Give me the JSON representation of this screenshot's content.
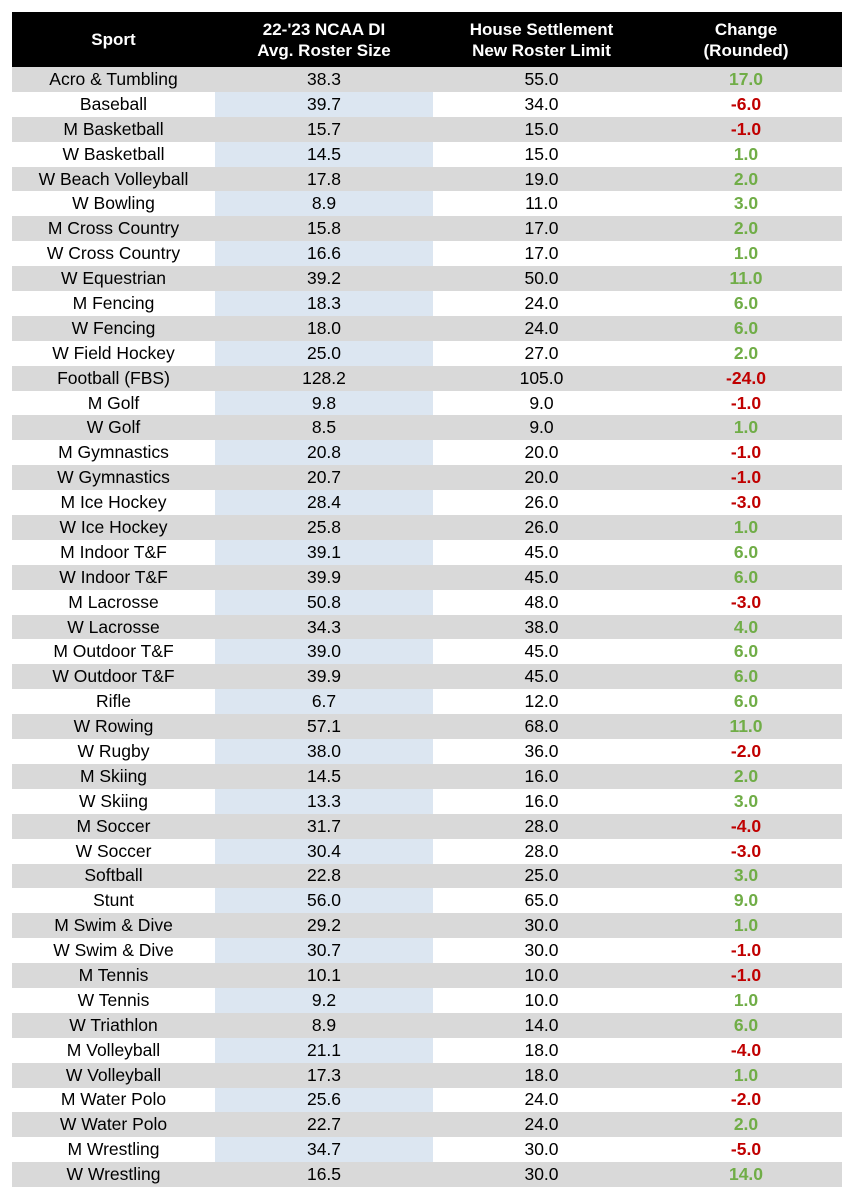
{
  "table": {
    "header": [
      [
        "Sport"
      ],
      [
        "22-'23 NCAA DI",
        "Avg. Roster Size"
      ],
      [
        "House Settlement",
        "New Roster Limit"
      ],
      [
        "Change",
        "(Rounded)"
      ]
    ],
    "rows": [
      [
        "Acro & Tumbling",
        "38.3",
        "55.0",
        "17.0"
      ],
      [
        "Baseball",
        "39.7",
        "34.0",
        "-6.0"
      ],
      [
        "M Basketball",
        "15.7",
        "15.0",
        "-1.0"
      ],
      [
        "W Basketball",
        "14.5",
        "15.0",
        "1.0"
      ],
      [
        "W Beach Volleyball",
        "17.8",
        "19.0",
        "2.0"
      ],
      [
        "W Bowling",
        "8.9",
        "11.0",
        "3.0"
      ],
      [
        "M Cross Country",
        "15.8",
        "17.0",
        "2.0"
      ],
      [
        "W Cross Country",
        "16.6",
        "17.0",
        "1.0"
      ],
      [
        "W Equestrian",
        "39.2",
        "50.0",
        "11.0"
      ],
      [
        "M Fencing",
        "18.3",
        "24.0",
        "6.0"
      ],
      [
        "W Fencing",
        "18.0",
        "24.0",
        "6.0"
      ],
      [
        "W Field Hockey",
        "25.0",
        "27.0",
        "2.0"
      ],
      [
        "Football (FBS)",
        "128.2",
        "105.0",
        "-24.0"
      ],
      [
        "M Golf",
        "9.8",
        "9.0",
        "-1.0"
      ],
      [
        "W Golf",
        "8.5",
        "9.0",
        "1.0"
      ],
      [
        "M Gymnastics",
        "20.8",
        "20.0",
        "-1.0"
      ],
      [
        "W Gymnastics",
        "20.7",
        "20.0",
        "-1.0"
      ],
      [
        "M Ice Hockey",
        "28.4",
        "26.0",
        "-3.0"
      ],
      [
        "W Ice Hockey",
        "25.8",
        "26.0",
        "1.0"
      ],
      [
        "M Indoor T&F",
        "39.1",
        "45.0",
        "6.0"
      ],
      [
        "W Indoor T&F",
        "39.9",
        "45.0",
        "6.0"
      ],
      [
        "M Lacrosse",
        "50.8",
        "48.0",
        "-3.0"
      ],
      [
        "W Lacrosse",
        "34.3",
        "38.0",
        "4.0"
      ],
      [
        "M Outdoor T&F",
        "39.0",
        "45.0",
        "6.0"
      ],
      [
        "W Outdoor T&F",
        "39.9",
        "45.0",
        "6.0"
      ],
      [
        "Rifle",
        "6.7",
        "12.0",
        "6.0"
      ],
      [
        "W Rowing",
        "57.1",
        "68.0",
        "11.0"
      ],
      [
        "W Rugby",
        "38.0",
        "36.0",
        "-2.0"
      ],
      [
        "M Skiing",
        "14.5",
        "16.0",
        "2.0"
      ],
      [
        "W Skiing",
        "13.3",
        "16.0",
        "3.0"
      ],
      [
        "M Soccer",
        "31.7",
        "28.0",
        "-4.0"
      ],
      [
        "W Soccer",
        "30.4",
        "28.0",
        "-3.0"
      ],
      [
        "Softball",
        "22.8",
        "25.0",
        "3.0"
      ],
      [
        "Stunt",
        "56.0",
        "65.0",
        "9.0"
      ],
      [
        "M Swim & Dive",
        "29.2",
        "30.0",
        "1.0"
      ],
      [
        "W Swim & Dive",
        "30.7",
        "30.0",
        "-1.0"
      ],
      [
        "M Tennis",
        "10.1",
        "10.0",
        "-1.0"
      ],
      [
        "W Tennis",
        "9.2",
        "10.0",
        "1.0"
      ],
      [
        "W Triathlon",
        "8.9",
        "14.0",
        "6.0"
      ],
      [
        "M Volleyball",
        "21.1",
        "18.0",
        "-4.0"
      ],
      [
        "W Volleyball",
        "17.3",
        "18.0",
        "1.0"
      ],
      [
        "M Water Polo",
        "25.6",
        "24.0",
        "-2.0"
      ],
      [
        "W Water Polo",
        "22.7",
        "24.0",
        "2.0"
      ],
      [
        "M Wrestling",
        "34.7",
        "30.0",
        "-5.0"
      ],
      [
        "W Wrestling",
        "16.5",
        "30.0",
        "14.0"
      ]
    ]
  }
}
